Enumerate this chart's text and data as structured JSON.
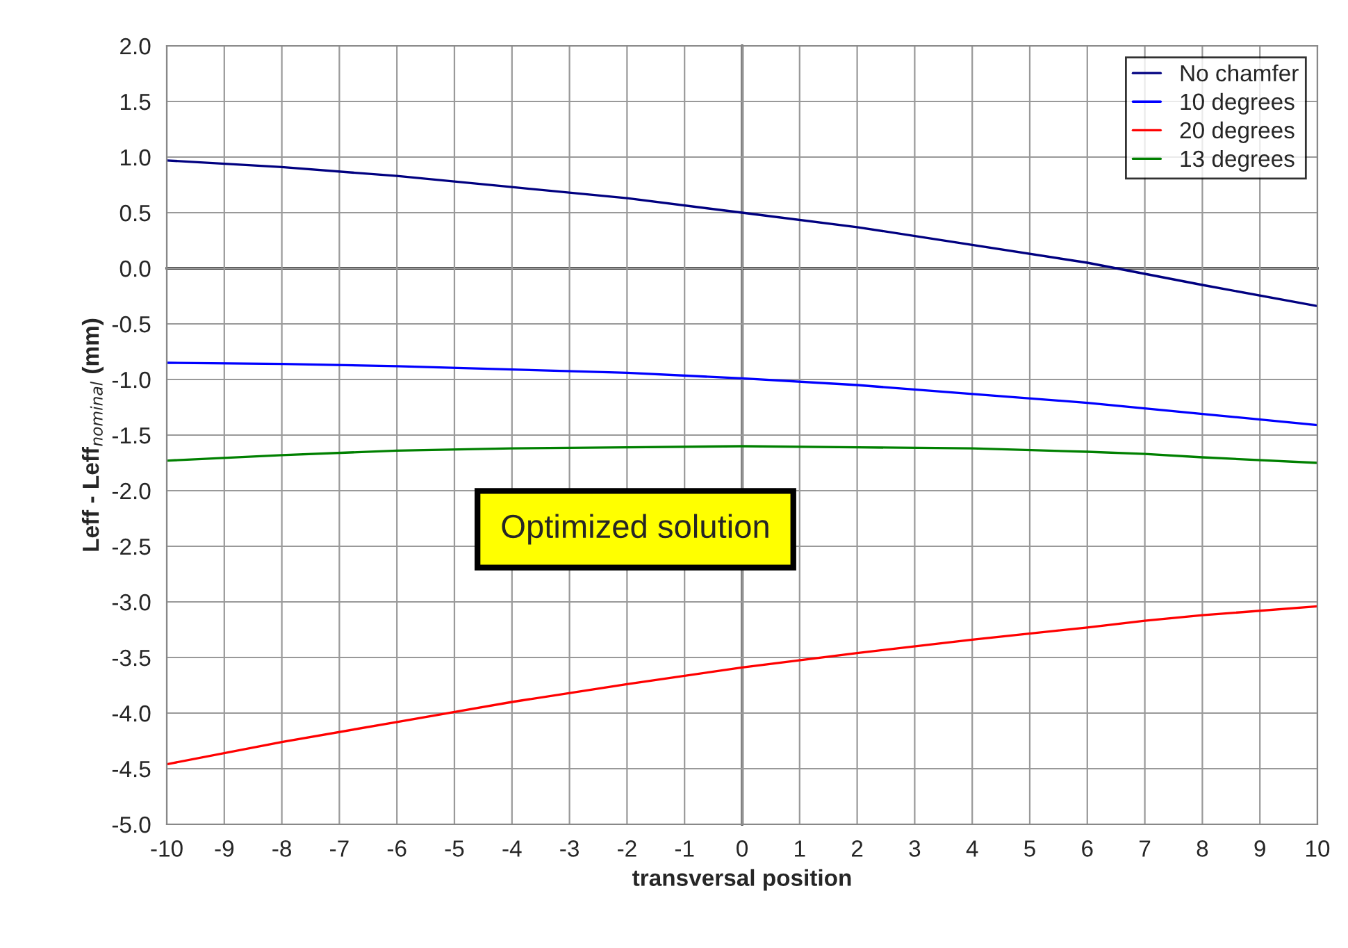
{
  "chart_data": {
    "type": "line",
    "xlabel": "transversal position",
    "ylabel": "Leff - Leff$_{nominal}$ (mm)",
    "x": [
      -10,
      -8,
      -6,
      -4,
      -2,
      0,
      2,
      4,
      6,
      7,
      8,
      10
    ],
    "series": [
      {
        "name": "No chamfer",
        "color": "#000080",
        "values": [
          0.97,
          0.91,
          0.83,
          0.73,
          0.63,
          0.5,
          0.37,
          0.21,
          0.05,
          -0.05,
          -0.15,
          -0.34
        ]
      },
      {
        "name": "10 degrees",
        "color": "#0000ff",
        "values": [
          -0.85,
          -0.86,
          -0.88,
          -0.91,
          -0.94,
          -0.99,
          -1.05,
          -1.13,
          -1.21,
          -1.26,
          -1.31,
          -1.41
        ]
      },
      {
        "name": "20 degrees",
        "color": "#ff0000",
        "values": [
          -4.46,
          -4.26,
          -4.08,
          -3.9,
          -3.74,
          -3.59,
          -3.46,
          -3.34,
          -3.23,
          -3.17,
          -3.12,
          -3.04
        ]
      },
      {
        "name": "13 degrees",
        "color": "#008000",
        "values": [
          -1.73,
          -1.68,
          -1.64,
          -1.62,
          -1.61,
          -1.6,
          -1.61,
          -1.62,
          -1.65,
          -1.67,
          -1.7,
          -1.75
        ]
      }
    ],
    "xlim": [
      -10,
      10
    ],
    "xticks": [
      -10,
      -9,
      -8,
      -7,
      -6,
      -5,
      -4,
      -3,
      -2,
      -1,
      0,
      1,
      2,
      3,
      4,
      5,
      6,
      7,
      8,
      9,
      10
    ],
    "ylim": [
      -5.0,
      2.0
    ],
    "yticks": [
      {
        "value": -5,
        "label": "-5.0"
      },
      {
        "value": -4.5,
        "label": "-4.5"
      },
      {
        "value": -4,
        "label": "-4.0"
      },
      {
        "value": -3.5,
        "label": "-3.5"
      },
      {
        "value": -3,
        "label": "-3.0"
      },
      {
        "value": -2.5,
        "label": "-2.5"
      },
      {
        "value": -2,
        "label": "-2.0"
      },
      {
        "value": -1.5,
        "label": "-1.5"
      },
      {
        "value": -1,
        "label": "-1.0"
      },
      {
        "value": -0.5,
        "label": "-0.5"
      },
      {
        "value": 0,
        "label": "0.0"
      },
      {
        "value": 0.5,
        "label": "0.5"
      },
      {
        "value": 1,
        "label": "1.0"
      },
      {
        "value": 1.5,
        "label": "1.5"
      },
      {
        "value": 2,
        "label": "2.0"
      }
    ],
    "annotations": [
      "Optimized solution"
    ],
    "grid": true,
    "legend": "top right"
  }
}
